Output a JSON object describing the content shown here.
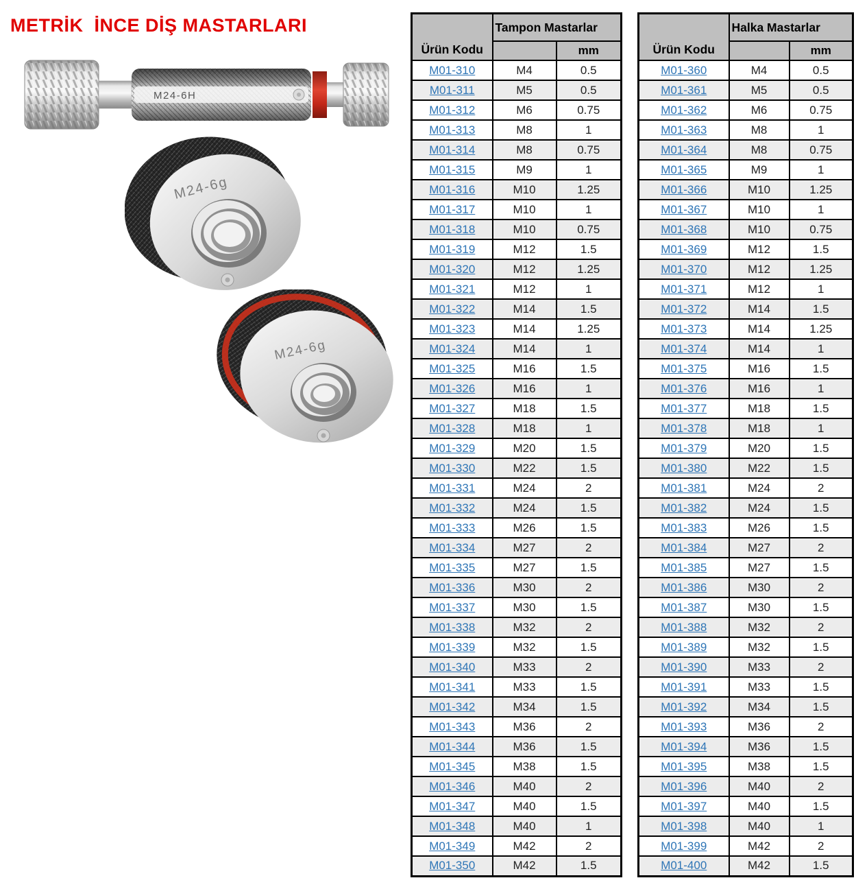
{
  "page": {
    "title": "METRİK  İNCE DİŞ MASTARLARI"
  },
  "images": {
    "plug_gauge_label": "M24-6H",
    "ring_gauge_1_label": "M24-6g",
    "ring_gauge_2_label": "M24-6g"
  },
  "colors": {
    "title_red": "#E00000",
    "link_blue": "#2E75B6",
    "header_gray": "#BFBFBF",
    "alt_row_gray": "#ECECEC",
    "border_black": "#000000",
    "gauge_band_red": "#C22718"
  },
  "tables": [
    {
      "code_header": "Ürün Kodu",
      "group_header": "Tampon Mastarlar",
      "mm_header": "mm",
      "rows": [
        {
          "code": "M01-310",
          "size": "M4",
          "mm": "0.5"
        },
        {
          "code": "M01-311",
          "size": "M5",
          "mm": "0.5"
        },
        {
          "code": "M01-312",
          "size": "M6",
          "mm": "0.75"
        },
        {
          "code": "M01-313",
          "size": "M8",
          "mm": "1"
        },
        {
          "code": "M01-314",
          "size": "M8",
          "mm": "0.75"
        },
        {
          "code": "M01-315",
          "size": "M9",
          "mm": "1"
        },
        {
          "code": "M01-316",
          "size": "M10",
          "mm": "1.25"
        },
        {
          "code": "M01-317",
          "size": "M10",
          "mm": "1"
        },
        {
          "code": "M01-318",
          "size": "M10",
          "mm": "0.75"
        },
        {
          "code": "M01-319",
          "size": "M12",
          "mm": "1.5"
        },
        {
          "code": "M01-320",
          "size": "M12",
          "mm": "1.25"
        },
        {
          "code": "M01-321",
          "size": "M12",
          "mm": "1"
        },
        {
          "code": "M01-322",
          "size": "M14",
          "mm": "1.5"
        },
        {
          "code": "M01-323",
          "size": "M14",
          "mm": "1.25"
        },
        {
          "code": "M01-324",
          "size": "M14",
          "mm": "1"
        },
        {
          "code": "M01-325",
          "size": "M16",
          "mm": "1.5"
        },
        {
          "code": "M01-326",
          "size": "M16",
          "mm": "1"
        },
        {
          "code": "M01-327",
          "size": "M18",
          "mm": "1.5"
        },
        {
          "code": "M01-328",
          "size": "M18",
          "mm": "1"
        },
        {
          "code": "M01-329",
          "size": "M20",
          "mm": "1.5"
        },
        {
          "code": "M01-330",
          "size": "M22",
          "mm": "1.5"
        },
        {
          "code": "M01-331",
          "size": "M24",
          "mm": "2"
        },
        {
          "code": "M01-332",
          "size": "M24",
          "mm": "1.5"
        },
        {
          "code": "M01-333",
          "size": "M26",
          "mm": "1.5"
        },
        {
          "code": "M01-334",
          "size": "M27",
          "mm": "2"
        },
        {
          "code": "M01-335",
          "size": "M27",
          "mm": "1.5"
        },
        {
          "code": "M01-336",
          "size": "M30",
          "mm": "2"
        },
        {
          "code": "M01-337",
          "size": "M30",
          "mm": "1.5"
        },
        {
          "code": "M01-338",
          "size": "M32",
          "mm": "2"
        },
        {
          "code": "M01-339",
          "size": "M32",
          "mm": "1.5"
        },
        {
          "code": "M01-340",
          "size": "M33",
          "mm": "2"
        },
        {
          "code": "M01-341",
          "size": "M33",
          "mm": "1.5"
        },
        {
          "code": "M01-342",
          "size": "M34",
          "mm": "1.5"
        },
        {
          "code": "M01-343",
          "size": "M36",
          "mm": "2"
        },
        {
          "code": "M01-344",
          "size": "M36",
          "mm": "1.5"
        },
        {
          "code": "M01-345",
          "size": "M38",
          "mm": "1.5"
        },
        {
          "code": "M01-346",
          "size": "M40",
          "mm": "2"
        },
        {
          "code": "M01-347",
          "size": "M40",
          "mm": "1.5"
        },
        {
          "code": "M01-348",
          "size": "M40",
          "mm": "1"
        },
        {
          "code": "M01-349",
          "size": "M42",
          "mm": "2"
        },
        {
          "code": "M01-350",
          "size": "M42",
          "mm": "1.5"
        }
      ]
    },
    {
      "code_header": "Ürün Kodu",
      "group_header": "Halka Mastarlar",
      "mm_header": "mm",
      "rows": [
        {
          "code": "M01-360",
          "size": "M4",
          "mm": "0.5"
        },
        {
          "code": "M01-361",
          "size": "M5",
          "mm": "0.5"
        },
        {
          "code": "M01-362",
          "size": "M6",
          "mm": "0.75"
        },
        {
          "code": "M01-363",
          "size": "M8",
          "mm": "1"
        },
        {
          "code": "M01-364",
          "size": "M8",
          "mm": "0.75"
        },
        {
          "code": "M01-365",
          "size": "M9",
          "mm": "1"
        },
        {
          "code": "M01-366",
          "size": "M10",
          "mm": "1.25"
        },
        {
          "code": "M01-367",
          "size": "M10",
          "mm": "1"
        },
        {
          "code": "M01-368",
          "size": "M10",
          "mm": "0.75"
        },
        {
          "code": "M01-369",
          "size": "M12",
          "mm": "1.5"
        },
        {
          "code": "M01-370",
          "size": "M12",
          "mm": "1.25"
        },
        {
          "code": "M01-371",
          "size": "M12",
          "mm": "1"
        },
        {
          "code": "M01-372",
          "size": "M14",
          "mm": "1.5"
        },
        {
          "code": "M01-373",
          "size": "M14",
          "mm": "1.25"
        },
        {
          "code": "M01-374",
          "size": "M14",
          "mm": "1"
        },
        {
          "code": "M01-375",
          "size": "M16",
          "mm": "1.5"
        },
        {
          "code": "M01-376",
          "size": "M16",
          "mm": "1"
        },
        {
          "code": "M01-377",
          "size": "M18",
          "mm": "1.5"
        },
        {
          "code": "M01-378",
          "size": "M18",
          "mm": "1"
        },
        {
          "code": "M01-379",
          "size": "M20",
          "mm": "1.5"
        },
        {
          "code": "M01-380",
          "size": "M22",
          "mm": "1.5"
        },
        {
          "code": "M01-381",
          "size": "M24",
          "mm": "2"
        },
        {
          "code": "M01-382",
          "size": "M24",
          "mm": "1.5"
        },
        {
          "code": "M01-383",
          "size": "M26",
          "mm": "1.5"
        },
        {
          "code": "M01-384",
          "size": "M27",
          "mm": "2"
        },
        {
          "code": "M01-385",
          "size": "M27",
          "mm": "1.5"
        },
        {
          "code": "M01-386",
          "size": "M30",
          "mm": "2"
        },
        {
          "code": "M01-387",
          "size": "M30",
          "mm": "1.5"
        },
        {
          "code": "M01-388",
          "size": "M32",
          "mm": "2"
        },
        {
          "code": "M01-389",
          "size": "M32",
          "mm": "1.5"
        },
        {
          "code": "M01-390",
          "size": "M33",
          "mm": "2"
        },
        {
          "code": "M01-391",
          "size": "M33",
          "mm": "1.5"
        },
        {
          "code": "M01-392",
          "size": "M34",
          "mm": "1.5"
        },
        {
          "code": "M01-393",
          "size": "M36",
          "mm": "2"
        },
        {
          "code": "M01-394",
          "size": "M36",
          "mm": "1.5"
        },
        {
          "code": "M01-395",
          "size": "M38",
          "mm": "1.5"
        },
        {
          "code": "M01-396",
          "size": "M40",
          "mm": "2"
        },
        {
          "code": "M01-397",
          "size": "M40",
          "mm": "1.5"
        },
        {
          "code": "M01-398",
          "size": "M40",
          "mm": "1"
        },
        {
          "code": "M01-399",
          "size": "M42",
          "mm": "2"
        },
        {
          "code": "M01-400",
          "size": "M42",
          "mm": "1.5"
        }
      ]
    }
  ]
}
